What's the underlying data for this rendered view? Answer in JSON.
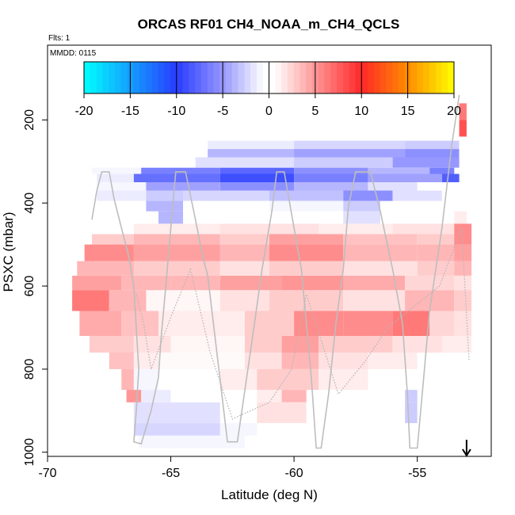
{
  "chart_data": {
    "type": "heatmap",
    "title": "ORCAS RF01 CH4_NOAA_m_CH4_QCLS",
    "flights_label": "Flts: 1",
    "date_label": "MMDD: 0115",
    "xlabel": "Latitude (deg N)",
    "ylabel": "PSXC (mbar)",
    "xlim": [
      -70,
      -52
    ],
    "ylim": [
      1010,
      20
    ],
    "x_ticks": [
      -70,
      -65,
      -60,
      -55
    ],
    "x_tick_labels": [
      "-70",
      "-65",
      "-60",
      "-55"
    ],
    "y_ticks": [
      200,
      400,
      600,
      800,
      1000
    ],
    "y_tick_labels": [
      "200",
      "400",
      "600",
      "800",
      "1000"
    ],
    "colorbar": {
      "range": [
        -20,
        20
      ],
      "ticks": [
        -20,
        -15,
        -10,
        -5,
        0,
        5,
        10,
        15,
        20
      ],
      "tick_labels": [
        "-20",
        "-15",
        "-10",
        "-5",
        "0",
        "5",
        "10",
        "15",
        "20"
      ]
    },
    "arrow_latitude": -53.0,
    "bands": [
      {
        "p": [
          160,
          200
        ],
        "segments": [
          [
            -53.3,
            -53.0,
            7
          ]
        ]
      },
      {
        "p": [
          200,
          240
        ],
        "segments": [
          [
            -53.3,
            -53.0,
            9
          ]
        ]
      },
      {
        "p": [
          250,
          270
        ],
        "segments": [
          [
            -63.5,
            -60,
            -1.5
          ],
          [
            -60,
            -55.5,
            -2.5
          ],
          [
            -55.5,
            -53.3,
            -3
          ]
        ]
      },
      {
        "p": [
          270,
          290
        ],
        "segments": [
          [
            -63.5,
            -60,
            -4
          ],
          [
            -60,
            -55.5,
            -5
          ],
          [
            -55.5,
            -53.3,
            -6
          ]
        ]
      },
      {
        "p": [
          290,
          315
        ],
        "segments": [
          [
            -64,
            -60,
            -2
          ],
          [
            -60,
            -56,
            -3
          ],
          [
            -56,
            -53.3,
            -5.5
          ]
        ]
      },
      {
        "p": [
          315,
          330
        ],
        "segments": [
          [
            -68.2,
            -66.2,
            -1
          ],
          [
            -66.2,
            -63,
            -7
          ],
          [
            -63,
            -60,
            -8.5
          ],
          [
            -60,
            -57,
            -6
          ],
          [
            -57,
            -54.5,
            -4
          ],
          [
            -54.5,
            -53.5,
            -7
          ]
        ]
      },
      {
        "p": [
          330,
          350
        ],
        "segments": [
          [
            -68,
            -66.5,
            -1.5
          ],
          [
            -66.5,
            -63,
            -8
          ],
          [
            -63,
            -60,
            -10
          ],
          [
            -60,
            -57,
            -7
          ],
          [
            -57,
            -54,
            -5
          ],
          [
            -54,
            -53.3,
            -9
          ]
        ]
      },
      {
        "p": [
          350,
          370
        ],
        "segments": [
          [
            -68,
            -66,
            -1
          ],
          [
            -66,
            -63,
            -5
          ],
          [
            -63,
            -60,
            -6
          ],
          [
            -60,
            -57,
            -4
          ],
          [
            -57,
            -55,
            -2
          ]
        ]
      },
      {
        "p": [
          370,
          395
        ],
        "segments": [
          [
            -68,
            -66,
            -1.5
          ],
          [
            -66,
            -64.5,
            -3
          ],
          [
            -64.5,
            -61,
            -2.5
          ],
          [
            -61,
            -58,
            -3.5
          ],
          [
            -58,
            -56,
            -6
          ],
          [
            -56,
            -54,
            -2
          ]
        ]
      },
      {
        "p": [
          395,
          420
        ],
        "segments": [
          [
            -66,
            -64.5,
            -4
          ],
          [
            -64.5,
            -61,
            -0.5
          ],
          [
            -61,
            -58,
            -1
          ],
          [
            -58,
            -56.5,
            -3
          ]
        ]
      },
      {
        "p": [
          420,
          450
        ],
        "segments": [
          [
            -65.5,
            -64.5,
            -4
          ],
          [
            -64.5,
            -61,
            0.5
          ],
          [
            -61,
            -58,
            0.5
          ],
          [
            -58,
            -56.5,
            -2
          ],
          [
            -53.5,
            -53,
            1.5
          ]
        ]
      },
      {
        "p": [
          450,
          475
        ],
        "segments": [
          [
            -66.5,
            -63,
            1.5
          ],
          [
            -63,
            -59,
            2
          ],
          [
            -59,
            -56,
            1.5
          ],
          [
            -56,
            -53.5,
            2
          ],
          [
            -53.5,
            -52.8,
            6
          ]
        ]
      },
      {
        "p": [
          475,
          500
        ],
        "segments": [
          [
            -68.2,
            -66.5,
            3
          ],
          [
            -66.5,
            -63,
            4
          ],
          [
            -63,
            -61,
            3
          ],
          [
            -61,
            -58,
            5
          ],
          [
            -58,
            -55,
            3.5
          ],
          [
            -55,
            -53.5,
            3
          ],
          [
            -53.5,
            -52.8,
            6
          ]
        ]
      },
      {
        "p": [
          500,
          540
        ],
        "segments": [
          [
            -68.5,
            -66.5,
            6
          ],
          [
            -66.5,
            -63,
            5
          ],
          [
            -63,
            -61,
            4
          ],
          [
            -61,
            -58,
            6
          ],
          [
            -58,
            -55,
            4
          ],
          [
            -55,
            -53.5,
            4
          ],
          [
            -53.5,
            -52.8,
            5
          ]
        ]
      },
      {
        "p": [
          540,
          575
        ],
        "segments": [
          [
            -68.8,
            -66.5,
            4
          ],
          [
            -66.5,
            -63,
            3
          ],
          [
            -63,
            -61,
            2
          ],
          [
            -61,
            -58,
            3
          ],
          [
            -58,
            -55,
            2
          ],
          [
            -55,
            -53.5,
            3
          ],
          [
            -53.5,
            -52.8,
            4
          ]
        ]
      },
      {
        "p": [
          575,
          610
        ],
        "segments": [
          [
            -69,
            -67,
            5
          ],
          [
            -67,
            -65,
            4
          ],
          [
            -65,
            -63,
            4
          ],
          [
            -63,
            -60.5,
            5
          ],
          [
            -60.5,
            -58,
            5.5
          ],
          [
            -58,
            -55.5,
            4.5
          ],
          [
            -55.5,
            -53.5,
            2.5
          ],
          [
            -53.5,
            -52.8,
            2
          ]
        ]
      },
      {
        "p": [
          610,
          660
        ],
        "segments": [
          [
            -69,
            -67.5,
            7
          ],
          [
            -67.5,
            -66,
            4
          ],
          [
            -66,
            -63,
            1
          ],
          [
            -63,
            -61,
            2
          ],
          [
            -61,
            -58,
            3
          ],
          [
            -58,
            -55.5,
            2
          ],
          [
            -55.5,
            -53.5,
            4
          ],
          [
            -53.5,
            -52.8,
            3
          ]
        ]
      },
      {
        "p": [
          660,
          720
        ],
        "segments": [
          [
            -68.7,
            -67,
            4.5
          ],
          [
            -67,
            -65.5,
            3.5
          ],
          [
            -65.5,
            -62,
            1.5
          ],
          [
            -62,
            -60,
            3
          ],
          [
            -60,
            -58,
            6
          ],
          [
            -58,
            -56,
            6
          ],
          [
            -56,
            -54.5,
            7
          ],
          [
            -54.5,
            -53.5,
            2.5
          ],
          [
            -53.5,
            -52.8,
            2
          ]
        ]
      },
      {
        "p": [
          720,
          760
        ],
        "segments": [
          [
            -68.3,
            -66.5,
            3
          ],
          [
            -66.5,
            -65,
            2
          ],
          [
            -65,
            -62,
            1
          ],
          [
            -62,
            -60.5,
            3
          ],
          [
            -60.5,
            -59,
            5
          ],
          [
            -59,
            -56,
            3
          ],
          [
            -56,
            -54,
            2
          ],
          [
            -54,
            -52.8,
            1.5
          ]
        ]
      },
      {
        "p": [
          760,
          800
        ],
        "segments": [
          [
            -67.5,
            -66.5,
            3.5
          ],
          [
            -66.5,
            -65.5,
            1.5
          ],
          [
            -65.5,
            -62,
            0.8
          ],
          [
            -62,
            -60.5,
            2
          ],
          [
            -60.5,
            -59,
            4
          ],
          [
            -59,
            -57,
            2
          ],
          [
            -57,
            -55,
            1.5
          ]
        ]
      },
      {
        "p": [
          800,
          850
        ],
        "segments": [
          [
            -67,
            -66.5,
            4
          ],
          [
            -66.5,
            -65.5,
            -1
          ],
          [
            -65.5,
            -63,
            0.5
          ],
          [
            -63,
            -61.5,
            1.5
          ],
          [
            -61.5,
            -59,
            3
          ],
          [
            -59,
            -57,
            1.5
          ]
        ]
      },
      {
        "p": [
          850,
          880
        ],
        "segments": [
          [
            -66.8,
            -66.2,
            5.5
          ],
          [
            -66.2,
            -65,
            -1.5
          ],
          [
            -61.5,
            -60.5,
            1.5
          ],
          [
            -60.5,
            -59.5,
            4
          ],
          [
            -55.5,
            -55,
            -3
          ]
        ]
      },
      {
        "p": [
          880,
          930
        ],
        "segments": [
          [
            -66.5,
            -63,
            -2
          ],
          [
            -63,
            -61.5,
            -0.5
          ],
          [
            -61.5,
            -59.5,
            2
          ],
          [
            -55.5,
            -55,
            -3
          ]
        ]
      },
      {
        "p": [
          930,
          960
        ],
        "segments": [
          [
            -66.5,
            -63,
            -2.5
          ],
          [
            -63,
            -61.5,
            -1
          ]
        ]
      },
      {
        "p": [
          960,
          990
        ],
        "segments": [
          [
            -66.3,
            -62,
            -1
          ],
          [
            -62,
            -61,
            -0.5
          ]
        ]
      }
    ],
    "flight_track_solid": [
      [
        -68.2,
        440
      ],
      [
        -68.0,
        370
      ],
      [
        -67.8,
        325
      ],
      [
        -67.5,
        325
      ],
      [
        -67.3,
        390
      ],
      [
        -67.0,
        460
      ],
      [
        -66.7,
        530
      ],
      [
        -66.5,
        600
      ],
      [
        -66.4,
        700
      ],
      [
        -66.3,
        800
      ],
      [
        -66.4,
        900
      ],
      [
        -66.5,
        975
      ],
      [
        -66.2,
        980
      ],
      [
        -65.8,
        900
      ],
      [
        -65.5,
        820
      ],
      [
        -65.4,
        730
      ],
      [
        -65.2,
        600
      ],
      [
        -65.0,
        460
      ],
      [
        -64.8,
        325
      ],
      [
        -64.4,
        325
      ],
      [
        -64.0,
        440
      ],
      [
        -63.7,
        530
      ],
      [
        -63.5,
        575
      ],
      [
        -62.7,
        975
      ],
      [
        -62.3,
        975
      ],
      [
        -61.7,
        730
      ],
      [
        -61.3,
        560
      ],
      [
        -60.9,
        420
      ],
      [
        -60.7,
        325
      ],
      [
        -60.4,
        325
      ],
      [
        -60.0,
        460
      ],
      [
        -59.7,
        560
      ],
      [
        -59.5,
        690
      ],
      [
        -59.3,
        820
      ],
      [
        -59.1,
        990
      ],
      [
        -58.9,
        990
      ],
      [
        -58.6,
        860
      ],
      [
        -58.3,
        690
      ],
      [
        -58.0,
        560
      ],
      [
        -57.8,
        410
      ],
      [
        -57.5,
        325
      ],
      [
        -56.9,
        325
      ],
      [
        -56.5,
        420
      ],
      [
        -56.0,
        560
      ],
      [
        -55.6,
        690
      ],
      [
        -55.4,
        860
      ],
      [
        -55.3,
        990
      ],
      [
        -55.0,
        990
      ],
      [
        -54.8,
        860
      ],
      [
        -54.5,
        660
      ],
      [
        -54.0,
        460
      ],
      [
        -53.6,
        260
      ],
      [
        -53.3,
        140
      ]
    ],
    "flight_track_dotted": [
      [
        -66.4,
        620
      ],
      [
        -66.1,
        690
      ],
      [
        -65.8,
        800
      ],
      [
        -64.9,
        660
      ],
      [
        -64.2,
        560
      ],
      [
        -63.4,
        760
      ],
      [
        -62.5,
        920
      ],
      [
        -61.0,
        880
      ],
      [
        -60.1,
        800
      ],
      [
        -59.5,
        620
      ],
      [
        -58.2,
        860
      ],
      [
        -57.1,
        780
      ],
      [
        -56.2,
        700
      ],
      [
        -54.1,
        600
      ],
      [
        -53.2,
        460
      ],
      [
        -52.9,
        780
      ]
    ]
  }
}
